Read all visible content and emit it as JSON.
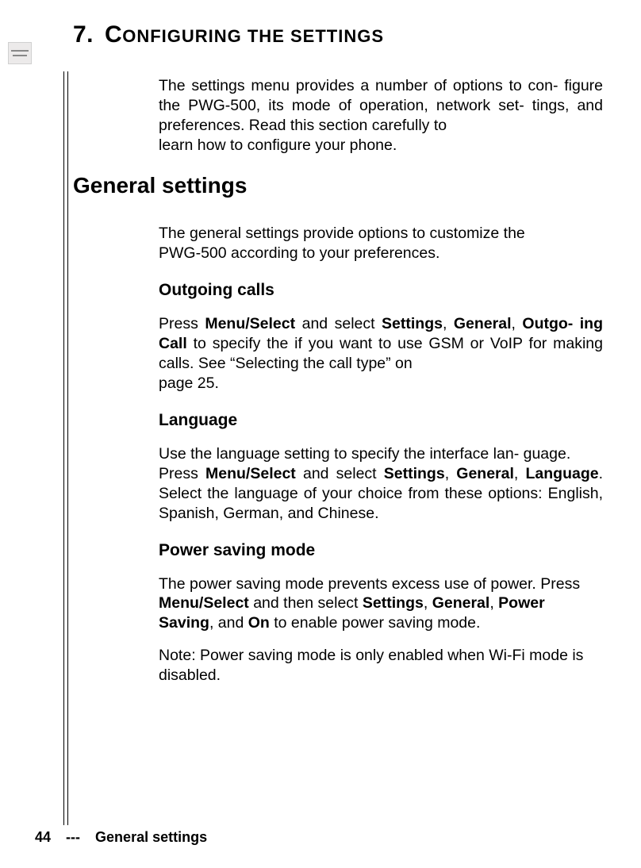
{
  "chapter": {
    "number": "7.",
    "title_initial": "C",
    "title_rest": "ONFIGURING THE SETTINGS"
  },
  "intro": {
    "p1": "The settings menu provides a number of options to con- figure the PWG-500, its mode of operation, network set- tings, and preferences. Read this section carefully to",
    "p2": "learn how to configure your phone."
  },
  "general": {
    "title": "General settings",
    "intro1": "The general settings provide options to customize the",
    "intro2": "PWG-500 according to your preferences.",
    "outgoing": {
      "heading": "Outgoing calls",
      "t1": "Press ",
      "b1": "Menu/Select",
      "t2": " and select ",
      "b2": "Settings",
      "t3": ", ",
      "b3": "General",
      "t4": ", ",
      "b4": "Outgo- ing Call",
      "t5": " to specify the if you want to use GSM or VoIP for making calls. See “Selecting the call type” on",
      "p2": "page 25."
    },
    "language": {
      "heading": "Language",
      "p1": "Use the language setting to specify the interface lan- guage.",
      "t1": "Press ",
      "b1": "Menu/Select",
      "t2": " and select ",
      "b2": "Settings",
      "t3": ", ",
      "b3": "General",
      "t4": ", ",
      "b4": "Language",
      "t5": ". Select the language of your choice from these options: English, Spanish, German, and Chinese."
    },
    "power": {
      "heading": "Power saving mode",
      "t1": "The power saving mode prevents excess use of power. Press ",
      "b1": "Menu/Select",
      "t2": " and then select ",
      "b2": "Settings",
      "t3": ", ",
      "b3": "General",
      "t4": ", ",
      "b4": "Power Saving",
      "t5": ", and ",
      "b5": "On",
      "t6": " to enable power saving mode.",
      "note": "Note: Power saving mode is only enabled when Wi-Fi mode is disabled."
    }
  },
  "footer": {
    "page": "44",
    "sep": "---",
    "section": "General settings"
  }
}
